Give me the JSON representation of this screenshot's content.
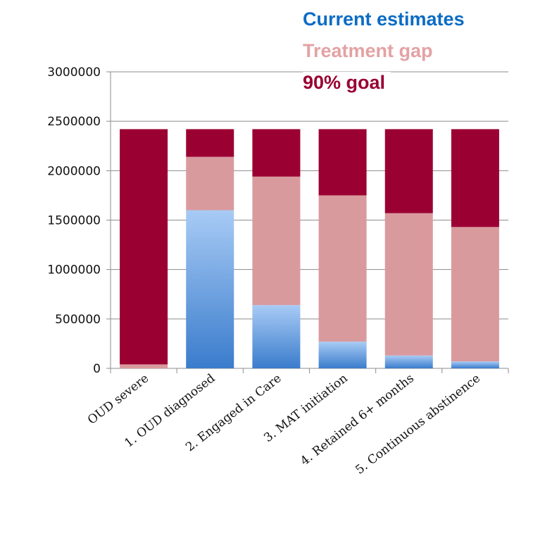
{
  "chart_data": {
    "type": "bar",
    "stacked": true,
    "categories": [
      "OUD severe",
      "1. OUD diagnosed",
      "2. Engaged in Care",
      "3. MAT initiation",
      "4. Retained 6+ months",
      "5. Continuous abstinence"
    ],
    "series": [
      {
        "name": "Current estimates",
        "values": [
          0,
          1600000,
          640000,
          270000,
          130000,
          70000
        ]
      },
      {
        "name": "Treatment gap",
        "values": [
          40000,
          540000,
          1300000,
          1480000,
          1440000,
          1360000
        ]
      },
      {
        "name": "90% goal",
        "values": [
          2380000,
          280000,
          480000,
          670000,
          850000,
          990000
        ]
      }
    ],
    "ylim": [
      0,
      3000000
    ],
    "yticks": [
      0,
      500000,
      1000000,
      1500000,
      2000000,
      2500000,
      3000000
    ],
    "grid": true,
    "legend_position": "top-right",
    "colors": {
      "current_top": "#a8cbf5",
      "current_bottom": "#3a7ccc",
      "treatment_gap": "#d99a9e",
      "goal": "#9b0033",
      "legend_current": "#0c6cc4",
      "legend_gap": "#e3a2a4",
      "legend_goal": "#990033",
      "grid": "#8c8c8c"
    }
  }
}
